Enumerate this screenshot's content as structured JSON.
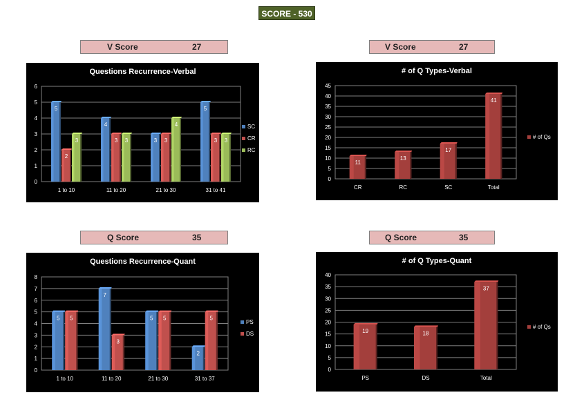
{
  "score_title": "SCORE - 530",
  "score_boxes": {
    "v_left": {
      "label": "V Score",
      "value": "27"
    },
    "v_right": {
      "label": "V Score",
      "value": "27"
    },
    "q_left": {
      "label": "Q Score",
      "value": "35"
    },
    "q_right": {
      "label": "Q Score",
      "value": "35"
    }
  },
  "colors": {
    "blue": "#4f81bd",
    "red": "#c0504d",
    "green": "#9bbb59",
    "darkred": "#a33f3c"
  },
  "chart_data": [
    {
      "id": "verbal_recurrence",
      "type": "bar",
      "title": "Questions Recurrence-Verbal",
      "categories": [
        "1 to 10",
        "11 to 20",
        "21 to 30",
        "31 to 41"
      ],
      "ylim": [
        0,
        6
      ],
      "yticks": [
        "0",
        "1",
        "2",
        "3",
        "4",
        "5",
        "6"
      ],
      "series": [
        {
          "name": "SC",
          "color": "#4f81bd",
          "values": [
            5,
            4,
            3,
            5
          ]
        },
        {
          "name": "CR",
          "color": "#c0504d",
          "values": [
            2,
            3,
            3,
            3
          ]
        },
        {
          "name": "RC",
          "color": "#9bbb59",
          "values": [
            3,
            3,
            4,
            3
          ]
        }
      ],
      "legend": "right"
    },
    {
      "id": "verbal_types",
      "type": "bar",
      "title": "# of Q Types-Verbal",
      "categories": [
        "CR",
        "RC",
        "SC",
        "Total"
      ],
      "ylim": [
        0,
        45
      ],
      "yticks": [
        "0",
        "5",
        "10",
        "15",
        "20",
        "25",
        "30",
        "35",
        "40",
        "45"
      ],
      "series": [
        {
          "name": "# of Qs",
          "color": "#a33f3c",
          "values": [
            11,
            13,
            17,
            41
          ]
        }
      ],
      "legend": "right"
    },
    {
      "id": "quant_recurrence",
      "type": "bar",
      "title": "Questions Recurrence-Quant",
      "categories": [
        "1 to 10",
        "11 to 20",
        "21 to 30",
        "31 to 37"
      ],
      "ylim": [
        0,
        8
      ],
      "yticks": [
        "0",
        "1",
        "2",
        "3",
        "4",
        "5",
        "6",
        "7",
        "8"
      ],
      "series": [
        {
          "name": "PS",
          "color": "#4f81bd",
          "values": [
            5,
            7,
            5,
            2
          ]
        },
        {
          "name": "DS",
          "color": "#c0504d",
          "values": [
            5,
            3,
            5,
            5
          ]
        }
      ],
      "legend": "right"
    },
    {
      "id": "quant_types",
      "type": "bar",
      "title": "# of Q Types-Quant",
      "categories": [
        "PS",
        "DS",
        "Total"
      ],
      "ylim": [
        0,
        40
      ],
      "yticks": [
        "0",
        "5",
        "10",
        "15",
        "20",
        "25",
        "30",
        "35",
        "40"
      ],
      "series": [
        {
          "name": "# of Qs",
          "color": "#a33f3c",
          "values": [
            19,
            18,
            37
          ]
        }
      ],
      "legend": "right"
    }
  ]
}
